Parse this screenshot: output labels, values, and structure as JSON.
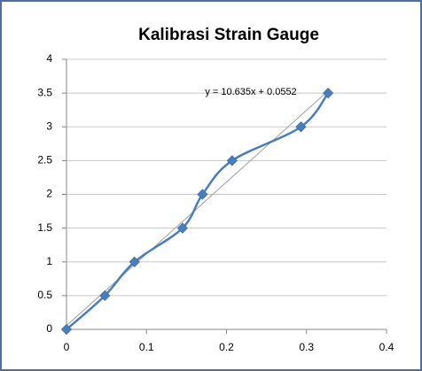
{
  "chart_data": {
    "type": "scatter",
    "title": "Kalibrasi Strain Gauge",
    "series": [
      {
        "color": "#4a7ebb",
        "x": [
          0,
          0.048,
          0.085,
          0.145,
          0.17,
          0.207,
          0.293,
          0.327
        ],
        "values": [
          0,
          0.5,
          1,
          1.5,
          2,
          2.5,
          3,
          3.5
        ]
      }
    ],
    "trendline": {
      "label": "y = 10.635x + 0.0552",
      "slope": 10.635,
      "intercept": 0.0552,
      "color": "#a0a0a0"
    },
    "xlim": [
      0,
      0.4
    ],
    "xticks": [
      0,
      0.1,
      0.2,
      0.3,
      0.4
    ],
    "ylim": [
      0,
      4
    ],
    "yticks": [
      0,
      0.5,
      1,
      1.5,
      2,
      2.5,
      3,
      3.5,
      4
    ],
    "grid": true
  }
}
